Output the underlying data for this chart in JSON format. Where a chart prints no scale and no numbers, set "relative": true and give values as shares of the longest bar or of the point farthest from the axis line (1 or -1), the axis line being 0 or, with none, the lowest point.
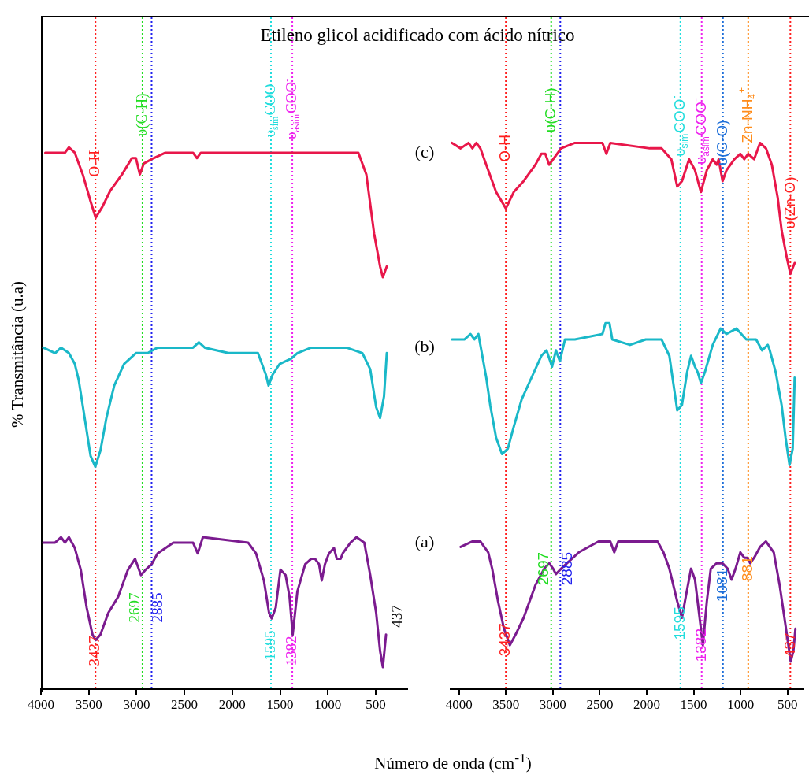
{
  "chart_data": [
    {
      "type": "line",
      "title": "Etileno glicol acidificado com ácido nítrico",
      "xlabel": "Número de onda (cm$^{-1}$)",
      "ylabel": "% Transmitância (u.a)",
      "relative": true,
      "xlim": [
        4000,
        170
      ],
      "xticks": [
        4000,
        3500,
        3000,
        2500,
        2000,
        1500,
        1000,
        500
      ],
      "series": [
        {
          "name": "(c)",
          "color": "#e8174a",
          "x": [
            3955,
            3852,
            3790,
            3749,
            3708,
            3646,
            3563,
            3481,
            3428,
            3358,
            3275,
            3152,
            3049,
            3007,
            2966,
            2925,
            2822,
            2699,
            2410,
            2369,
            2328,
            763,
            681,
            598,
            516,
            454,
            425,
            384
          ],
          "values": [
            0.99,
            0.99,
            0.99,
            0.99,
            1,
            0.99,
            0.95,
            0.9,
            0.87,
            0.89,
            0.92,
            0.95,
            0.98,
            0.98,
            0.95,
            0.97,
            0.98,
            0.99,
            0.99,
            0.98,
            0.99,
            0.99,
            0.99,
            0.95,
            0.84,
            0.78,
            0.76,
            0.78
          ]
        },
        {
          "name": "(b)",
          "color": "#1ab8c8",
          "x": [
            3975,
            3852,
            3790,
            3708,
            3646,
            3605,
            3543,
            3481,
            3432,
            3378,
            3316,
            3234,
            3131,
            3007,
            2937,
            2884,
            2781,
            2410,
            2349,
            2287,
            2040,
            1834,
            1731,
            1648,
            1620,
            1578,
            1504,
            1381,
            1319,
            1175,
            969,
            804,
            639,
            557,
            495,
            454,
            413,
            384
          ],
          "values": [
            0.63,
            0.62,
            0.63,
            0.62,
            0.6,
            0.57,
            0.5,
            0.43,
            0.41,
            0.44,
            0.5,
            0.56,
            0.6,
            0.62,
            0.62,
            0.62,
            0.63,
            0.63,
            0.64,
            0.63,
            0.62,
            0.62,
            0.62,
            0.58,
            0.56,
            0.58,
            0.6,
            0.61,
            0.62,
            0.63,
            0.63,
            0.63,
            0.62,
            0.59,
            0.52,
            0.5,
            0.54,
            0.62
          ]
        },
        {
          "name": "(a)",
          "color": "#7b1b8f",
          "x": [
            3975,
            3852,
            3790,
            3749,
            3708,
            3646,
            3584,
            3522,
            3461,
            3428,
            3378,
            3296,
            3193,
            3090,
            3016,
            2954,
            2905,
            2843,
            2781,
            2616,
            2410,
            2361,
            2307,
            1834,
            1751,
            1669,
            1615,
            1587,
            1545,
            1496,
            1442,
            1401,
            1368,
            1319,
            1237,
            1175,
            1134,
            1092,
            1064,
            1031,
            989,
            936,
            907,
            866,
            845,
            763,
            701,
            619,
            557,
            495,
            454,
            425,
            392
          ],
          "values": [
            0.27,
            0.27,
            0.28,
            0.27,
            0.28,
            0.26,
            0.22,
            0.15,
            0.1,
            0.09,
            0.1,
            0.14,
            0.17,
            0.22,
            0.24,
            0.21,
            0.22,
            0.23,
            0.25,
            0.27,
            0.27,
            0.25,
            0.28,
            0.27,
            0.25,
            0.2,
            0.14,
            0.13,
            0.15,
            0.22,
            0.21,
            0.17,
            0.1,
            0.18,
            0.23,
            0.24,
            0.24,
            0.23,
            0.2,
            0.23,
            0.25,
            0.26,
            0.24,
            0.24,
            0.25,
            0.27,
            0.28,
            0.27,
            0.21,
            0.14,
            0.07,
            0.04,
            0.1
          ]
        }
      ],
      "ref_lines": [
        {
          "axis": "x",
          "value": 3430,
          "color": "#ff2020",
          "line_style": "dotted"
        },
        {
          "axis": "x",
          "value": 2938,
          "color": "#22dd22",
          "line_style": "dotted"
        },
        {
          "axis": "x",
          "value": 2843,
          "color": "#2222ee",
          "line_style": "dotted"
        },
        {
          "axis": "x",
          "value": 1595,
          "color": "#22dddd",
          "line_style": "dotted"
        },
        {
          "axis": "x",
          "value": 1372,
          "color": "#ee22ee",
          "line_style": "dotted"
        }
      ],
      "annotations": [
        {
          "text": "O-H",
          "x": 3430,
          "y": 0.97
        },
        {
          "text": "υ(C-H)",
          "x": 2938,
          "y": 1.06
        },
        {
          "text": "υ$_{sim}$COO$^{-}$",
          "x": 1595,
          "y": 1.07
        },
        {
          "text": "υ$_{asim}$COO$^{-}$",
          "x": 1372,
          "y": 1.07
        },
        {
          "text": "3437",
          "x": 3430,
          "y": 0.07
        },
        {
          "text": "2697",
          "x": 2938,
          "y": 0.15
        },
        {
          "text": "2885",
          "x": 2843,
          "y": 0.15
        },
        {
          "text": "1595",
          "x": 1595,
          "y": 0.08
        },
        {
          "text": "1382",
          "x": 1372,
          "y": 0.07
        },
        "437"
      ]
    },
    {
      "type": "line",
      "relative": true,
      "xlim": [
        4090,
        330
      ],
      "xticks": [
        4000,
        3500,
        3000,
        2500,
        2000,
        1500,
        1000,
        500
      ],
      "series": [
        {
          "color": "#e8174a",
          "x": [
            4075,
            3983,
            3899,
            3857,
            3815,
            3773,
            3710,
            3605,
            3501,
            3417,
            3312,
            3186,
            3123,
            3081,
            3039,
            2997,
            2913,
            2766,
            2472,
            2430,
            2388,
            1969,
            1843,
            1738,
            1675,
            1625,
            1549,
            1486,
            1423,
            1360,
            1297,
            1255,
            1234,
            1192,
            1150,
            1066,
            1003,
            961,
            919,
            856,
            793,
            730,
            667,
            605,
            563,
            508,
            470,
            424
          ],
          "values": [
            1,
            0.99,
            1,
            0.99,
            1,
            0.99,
            0.96,
            0.91,
            0.88,
            0.91,
            0.93,
            0.96,
            0.98,
            0.98,
            0.96,
            0.97,
            0.99,
            1,
            1,
            0.98,
            1,
            0.99,
            0.99,
            0.97,
            0.92,
            0.93,
            0.97,
            0.95,
            0.91,
            0.95,
            0.97,
            0.96,
            0.97,
            0.93,
            0.95,
            0.97,
            0.98,
            0.97,
            0.98,
            0.97,
            1,
            0.99,
            0.96,
            0.9,
            0.84,
            0.79,
            0.76,
            0.78
          ]
        },
        {
          "color": "#1ab8c8",
          "x": [
            4075,
            3941,
            3878,
            3836,
            3794,
            3752,
            3710,
            3668,
            3605,
            3542,
            3480,
            3417,
            3333,
            3228,
            3123,
            3068,
            3009,
            2968,
            2926,
            2871,
            2766,
            2472,
            2439,
            2397,
            2367,
            2178,
            2011,
            1843,
            1759,
            1717,
            1675,
            1625,
            1570,
            1528,
            1486,
            1457,
            1423,
            1381,
            1297,
            1213,
            1150,
            1045,
            940,
            835,
            772,
            710,
            689,
            626,
            563,
            521,
            479,
            445,
            424
          ],
          "values": [
            0.64,
            0.64,
            0.65,
            0.64,
            0.65,
            0.61,
            0.57,
            0.52,
            0.46,
            0.43,
            0.44,
            0.48,
            0.53,
            0.57,
            0.61,
            0.62,
            0.59,
            0.62,
            0.6,
            0.64,
            0.64,
            0.65,
            0.67,
            0.67,
            0.64,
            0.63,
            0.64,
            0.64,
            0.61,
            0.56,
            0.51,
            0.52,
            0.58,
            0.61,
            0.59,
            0.58,
            0.56,
            0.58,
            0.63,
            0.66,
            0.65,
            0.66,
            0.64,
            0.64,
            0.62,
            0.63,
            0.62,
            0.58,
            0.52,
            0.46,
            0.41,
            0.44,
            0.57
          ]
        },
        {
          "color": "#7b1b8f",
          "x": [
            3983,
            3857,
            3794,
            3773,
            3731,
            3689,
            3647,
            3584,
            3521,
            3458,
            3396,
            3312,
            3186,
            3093,
            3039,
            2997,
            2968,
            2913,
            2850,
            2724,
            2514,
            2388,
            2346,
            2304,
            1885,
            1822,
            1759,
            1675,
            1625,
            1583,
            1528,
            1486,
            1444,
            1402,
            1360,
            1318,
            1255,
            1192,
            1138,
            1096,
            1054,
            1003,
            961,
            928,
            898,
            856,
            793,
            730,
            647,
            584,
            533,
            491,
            466,
            437,
            416
          ],
          "values": [
            0.26,
            0.27,
            0.27,
            0.27,
            0.26,
            0.25,
            0.22,
            0.16,
            0.11,
            0.08,
            0.1,
            0.13,
            0.19,
            0.22,
            0.23,
            0.22,
            0.21,
            0.22,
            0.23,
            0.25,
            0.27,
            0.27,
            0.25,
            0.27,
            0.27,
            0.25,
            0.22,
            0.16,
            0.13,
            0.17,
            0.22,
            0.2,
            0.14,
            0.08,
            0.16,
            0.22,
            0.23,
            0.23,
            0.22,
            0.2,
            0.22,
            0.25,
            0.24,
            0.24,
            0.23,
            0.24,
            0.26,
            0.27,
            0.25,
            0.19,
            0.13,
            0.08,
            0.05,
            0.07,
            0.11
          ]
        }
      ],
      "ref_lines": [
        {
          "axis": "x",
          "value": 3501,
          "color": "#ff2020",
          "line_style": "dotted"
        },
        {
          "axis": "x",
          "value": 3018,
          "color": "#22dd22",
          "line_style": "dotted"
        },
        {
          "axis": "x",
          "value": 2921,
          "color": "#2222ee",
          "line_style": "dotted"
        },
        {
          "axis": "x",
          "value": 1641,
          "color": "#22dddd",
          "line_style": "dotted"
        },
        {
          "axis": "x",
          "value": 1415,
          "color": "#ee22ee",
          "line_style": "dotted"
        },
        {
          "axis": "x",
          "value": 1188,
          "color": "#1e6fd9",
          "line_style": "dotted"
        },
        {
          "axis": "x",
          "value": 919,
          "color": "#ff8c1a",
          "line_style": "dotted"
        },
        {
          "axis": "x",
          "value": 470,
          "color": "#ff2020",
          "line_style": "dotted"
        }
      ],
      "annotations": [
        {
          "text": "O-H",
          "x": 3501,
          "y": 0.99
        },
        {
          "text": "υ(C-H)",
          "x": 3018,
          "y": 1.06
        },
        {
          "text": "υ$_{sim}$COO$^{-}$",
          "x": 1641,
          "y": 1.03
        },
        {
          "text": "υ$_{asim}$COO$^{-}$",
          "x": 1415,
          "y": 1.02
        },
        {
          "text": "υ(C-O)",
          "x": 1188,
          "y": 1.0
        },
        {
          "text": "Zn-NH$_{4}$$^{+}$",
          "x": 919,
          "y": 1.05
        },
        {
          "text": "υ(Zn-O)",
          "x": 470,
          "y": 0.89
        },
        {
          "text": "3437",
          "x": 3501,
          "y": 0.09
        },
        {
          "text": "2697",
          "x": 3018,
          "y": 0.22
        },
        {
          "text": "2885",
          "x": 2921,
          "y": 0.22
        },
        {
          "text": "1595",
          "x": 1641,
          "y": 0.12
        },
        {
          "text": "1382",
          "x": 1415,
          "y": 0.08
        },
        {
          "text": "1081",
          "x": 1188,
          "y": 0.19
        },
        {
          "text": "881",
          "x": 919,
          "y": 0.22
        },
        {
          "text": "437",
          "x": 470,
          "y": 0.08
        }
      ]
    }
  ]
}
